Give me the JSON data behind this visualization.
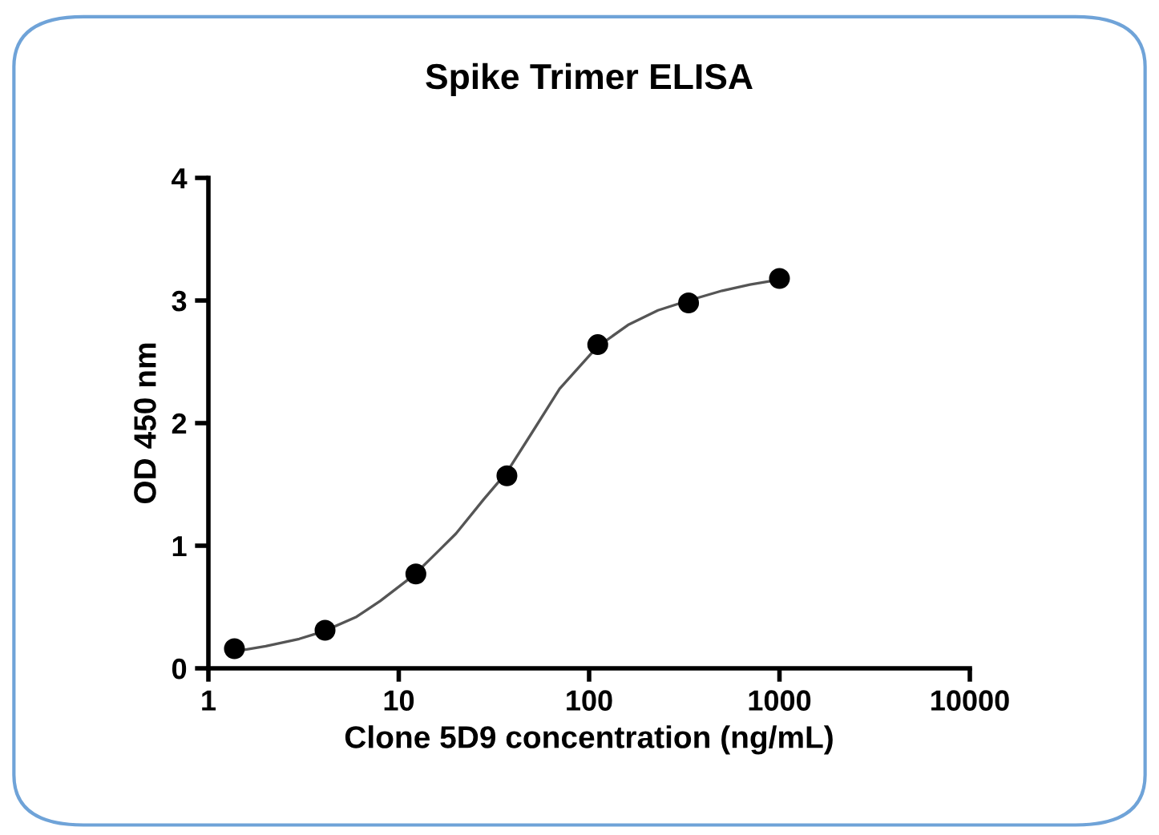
{
  "chart_data": {
    "type": "scatter",
    "title": "Spike Trimer ELISA",
    "xlabel": "Clone 5D9 concentration (ng/mL)",
    "ylabel": "OD 450 nm",
    "log": "x",
    "xlim": [
      1,
      10000
    ],
    "xticks": [
      1,
      10,
      100,
      1000,
      10000
    ],
    "ylim": [
      0,
      4
    ],
    "yticks": [
      0,
      1,
      2,
      3,
      4
    ],
    "grid": false,
    "legend": false,
    "series": [
      {
        "color": "#000000",
        "marker": "circle",
        "x": [
          1.37,
          4.1,
          12.3,
          37,
          111,
          333,
          1000
        ],
        "values": [
          0.16,
          0.31,
          0.77,
          1.57,
          2.64,
          2.98,
          3.18
        ]
      },
      {
        "type": "line",
        "color": "#555555",
        "marker": "none",
        "line_style": "solid",
        "x": [
          1.4,
          2,
          3,
          4,
          6,
          8,
          12,
          16,
          20,
          28,
          37,
          50,
          70,
          110,
          160,
          230,
          333,
          500,
          700,
          1000
        ],
        "values": [
          0.14,
          0.18,
          0.24,
          0.3,
          0.42,
          0.55,
          0.76,
          0.95,
          1.1,
          1.38,
          1.6,
          1.92,
          2.28,
          2.62,
          2.8,
          2.92,
          3.0,
          3.08,
          3.13,
          3.17
        ]
      }
    ]
  }
}
